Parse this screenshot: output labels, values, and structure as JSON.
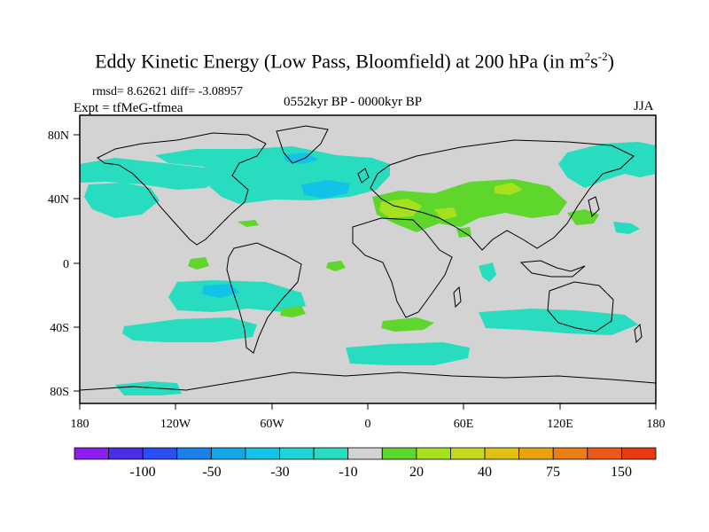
{
  "header": {
    "title_main": "Eddy Kinetic Energy (Low Pass, Bloomfield) at 200 hPa (in m",
    "title_sup1": "2",
    "title_mid": "s",
    "title_sup2": "-2",
    "title_end": ")",
    "stats": "rmsd= 8.62621 diff= -3.08957",
    "experiment": "Expt = tfMeG-tfmea",
    "period": "0552kyr BP - 0000kyr BP",
    "season": "JJA"
  },
  "map": {
    "longitude_ticks": [
      "180",
      "120W",
      "60W",
      "0",
      "60E",
      "120E",
      "180"
    ],
    "latitude_ticks": [
      "80N",
      "40N",
      "0",
      "40S",
      "80S"
    ],
    "colors": {
      "land_sea_base": "#d3d3d3",
      "cyan_anomaly": "#28dcc0",
      "blue_anomaly": "#12c3e8",
      "green_anomaly": "#5ed62c",
      "yellowgreen_anomaly": "#a6e01e",
      "coastline": "#000000"
    }
  },
  "colorbar": {
    "labels": [
      "-100",
      "-50",
      "-30",
      "-10",
      "20",
      "40",
      "75",
      "150"
    ],
    "colors": [
      "#8a1df0",
      "#4a2ee6",
      "#2c4ef0",
      "#1a80ea",
      "#12a8e8",
      "#12c3e8",
      "#1fd3d6",
      "#28dcc0",
      "#d3d3d3",
      "#5ed62c",
      "#a6e01e",
      "#c8d81a",
      "#e0c010",
      "#e8a410",
      "#ec7c14",
      "#ec5818",
      "#e83a10"
    ]
  }
}
